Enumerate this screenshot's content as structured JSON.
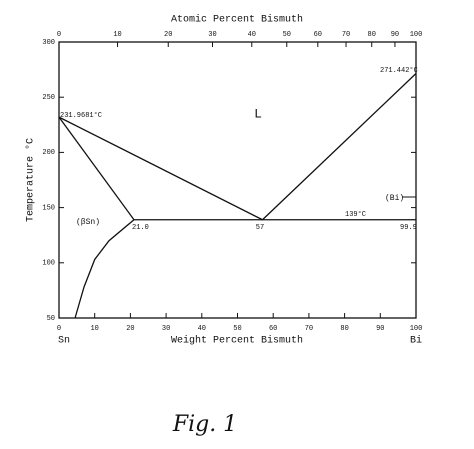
{
  "chart_data": {
    "type": "line",
    "x_top_label": "Atomic Percent Bismuth",
    "x_label": "Weight Percent Bismuth",
    "y_label": "Temperature °C",
    "xlim": [
      0,
      100
    ],
    "ylim": [
      50,
      300
    ],
    "xticks": [
      0,
      10,
      20,
      30,
      40,
      50,
      60,
      70,
      80,
      90,
      100
    ],
    "yticks": [
      50,
      100,
      150,
      200,
      250,
      300
    ],
    "x2ticks": [
      {
        "value": 0,
        "label": "0"
      },
      {
        "value": 16.4,
        "label": "10"
      },
      {
        "value": 30.6,
        "label": "20"
      },
      {
        "value": 43.0,
        "label": "30"
      },
      {
        "value": 54.0,
        "label": "40"
      },
      {
        "value": 63.8,
        "label": "50"
      },
      {
        "value": 72.5,
        "label": "60"
      },
      {
        "value": 80.4,
        "label": "70"
      },
      {
        "value": 87.6,
        "label": "80"
      },
      {
        "value": 94.1,
        "label": "90"
      },
      {
        "value": 100,
        "label": "100"
      }
    ],
    "series": [
      {
        "color": "#111111",
        "x": [
          0,
          57
        ],
        "values": [
          231.9681,
          139
        ]
      },
      {
        "color": "#111111",
        "x": [
          57,
          100
        ],
        "values": [
          139,
          271.442
        ]
      },
      {
        "color": "#111111",
        "x": [
          0,
          21
        ],
        "values": [
          231.9681,
          139
        ]
      },
      {
        "color": "#111111",
        "x": [
          21,
          14,
          10,
          7,
          4.5
        ],
        "values": [
          139,
          120,
          103,
          78,
          50
        ]
      },
      {
        "color": "#111111",
        "x": [
          21,
          99.9
        ],
        "values": [
          139,
          139
        ]
      }
    ],
    "annotations": [
      "231.9681°C",
      "271.442°C",
      "L",
      "(βSn)",
      "21.0",
      "57",
      "139°C",
      "99.9",
      "(Bi)",
      "Sn",
      "Bi"
    ],
    "caption": "Fig. 1"
  }
}
